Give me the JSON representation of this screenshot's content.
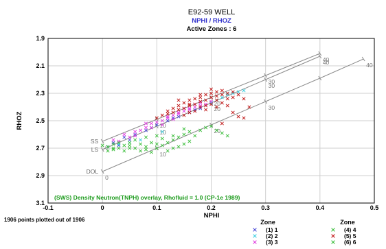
{
  "chart_data": {
    "type": "scatter",
    "title": "E92-59 WELL",
    "subtitle": "NPHI / RHOZ",
    "active_zones_label": "Active Zones : 6",
    "xlabel": "NPHI",
    "ylabel": "RHOZ",
    "xlim": [
      -0.1,
      0.5
    ],
    "ylim": [
      3.1,
      1.9
    ],
    "x_ticks": [
      -0.1,
      0,
      0.1,
      0.2,
      0.3,
      0.4,
      0.5
    ],
    "x_tick_labels": [
      "-0.1",
      "0",
      "0.1",
      "0.2",
      "0.3",
      "0.4",
      "0.5"
    ],
    "y_ticks": [
      1.9,
      2.1,
      2.3,
      2.5,
      2.7,
      2.9,
      3.1
    ],
    "y_tick_labels": [
      "1.9",
      "2.1",
      "2.3",
      "2.5",
      "2.7",
      "2.9",
      "3.1"
    ],
    "grid": true,
    "y_inverted": true,
    "overlay_caption": "(SWS) Density Neutron(TNPH) overlay, Rhofluid = 1.0 (CP-1e 1989)",
    "points_label": "1906 points plotted out of 1906",
    "legend_title_left": "Zone",
    "legend_title_right": "Zone",
    "legend_position": "bottom-right",
    "lithology_lines": [
      {
        "name": "SS",
        "color": "#8a8a8a",
        "points": [
          {
            "x": 0.0,
            "y": 2.65
          },
          {
            "x": 0.1,
            "y": 2.49
          },
          {
            "x": 0.2,
            "y": 2.33
          },
          {
            "x": 0.3,
            "y": 2.17
          },
          {
            "x": 0.4,
            "y": 2.01
          }
        ],
        "labels": [
          {
            "x": 0.0,
            "y": 2.65,
            "text": "0"
          },
          {
            "x": 0.1,
            "y": 2.49,
            "text": "10"
          },
          {
            "x": 0.2,
            "y": 2.33,
            "text": "20"
          },
          {
            "x": 0.3,
            "y": 2.17,
            "text": "30"
          },
          {
            "x": 0.4,
            "y": 2.01,
            "text": "40"
          }
        ]
      },
      {
        "name": "LS",
        "color": "#8a8a8a",
        "points": [
          {
            "x": 0.0,
            "y": 2.71
          },
          {
            "x": 0.1,
            "y": 2.54
          },
          {
            "x": 0.2,
            "y": 2.37
          },
          {
            "x": 0.3,
            "y": 2.2
          },
          {
            "x": 0.4,
            "y": 2.03
          }
        ],
        "labels": [
          {
            "x": 0.1,
            "y": 2.54,
            "text": "10"
          },
          {
            "x": 0.2,
            "y": 2.37,
            "text": "20"
          },
          {
            "x": 0.3,
            "y": 2.2,
            "text": "30"
          },
          {
            "x": 0.4,
            "y": 2.03,
            "text": "40"
          }
        ]
      },
      {
        "name": "DOL",
        "color": "#8a8a8a",
        "points": [
          {
            "x": 0.0,
            "y": 2.87
          },
          {
            "x": 0.1,
            "y": 2.7
          },
          {
            "x": 0.2,
            "y": 2.53
          },
          {
            "x": 0.3,
            "y": 2.36
          },
          {
            "x": 0.4,
            "y": 2.19
          },
          {
            "x": 0.48,
            "y": 2.05
          }
        ],
        "labels": [
          {
            "x": 0.0,
            "y": 2.87,
            "text": "0"
          },
          {
            "x": 0.1,
            "y": 2.7,
            "text": "10"
          },
          {
            "x": 0.2,
            "y": 2.53,
            "text": "20"
          },
          {
            "x": 0.3,
            "y": 2.36,
            "text": "30"
          },
          {
            "x": 0.48,
            "y": 2.05,
            "text": "40"
          }
        ]
      }
    ],
    "series": [
      {
        "name": "(1) 1",
        "marker": "x",
        "color": "#4b4bd8",
        "points": [
          [
            0.02,
            2.66
          ],
          [
            0.04,
            2.62
          ],
          [
            0.06,
            2.6
          ],
          [
            0.08,
            2.57
          ],
          [
            0.1,
            2.53
          ],
          [
            0.12,
            2.5
          ],
          [
            0.14,
            2.47
          ],
          [
            0.16,
            2.44
          ],
          [
            0.18,
            2.41
          ],
          [
            0.2,
            2.37
          ],
          [
            0.03,
            2.68
          ],
          [
            0.05,
            2.64
          ],
          [
            0.09,
            2.55
          ],
          [
            0.13,
            2.48
          ],
          [
            0.17,
            2.42
          ]
        ]
      },
      {
        "name": "(2) 2",
        "marker": "x",
        "color": "#3ecfe0",
        "points": [
          [
            0.01,
            2.69
          ],
          [
            0.03,
            2.67
          ],
          [
            0.05,
            2.66
          ],
          [
            0.07,
            2.64
          ],
          [
            0.11,
            2.58
          ],
          [
            0.2,
            2.37
          ],
          [
            0.22,
            2.33
          ],
          [
            0.24,
            2.3
          ],
          [
            0.25,
            2.29
          ],
          [
            0.26,
            2.28
          ],
          [
            0.23,
            2.31
          ],
          [
            0.21,
            2.35
          ]
        ]
      },
      {
        "name": "(3) 3",
        "marker": "x",
        "color": "#e040e0",
        "points": [
          [
            0.02,
            2.64
          ],
          [
            0.04,
            2.6
          ],
          [
            0.06,
            2.58
          ],
          [
            0.08,
            2.55
          ],
          [
            0.09,
            2.52
          ],
          [
            0.11,
            2.5
          ],
          [
            0.12,
            2.48
          ],
          [
            0.13,
            2.46
          ],
          [
            0.14,
            2.45
          ],
          [
            0.15,
            2.43
          ],
          [
            0.16,
            2.42
          ],
          [
            0.17,
            2.4
          ],
          [
            0.18,
            2.39
          ],
          [
            0.19,
            2.38
          ],
          [
            0.2,
            2.36
          ],
          [
            0.07,
            2.57
          ],
          [
            0.1,
            2.51
          ],
          [
            0.12,
            2.47
          ],
          [
            0.14,
            2.44
          ],
          [
            0.16,
            2.41
          ],
          [
            0.18,
            2.37
          ],
          [
            0.05,
            2.62
          ],
          [
            0.03,
            2.65
          ],
          [
            0.13,
            2.49
          ],
          [
            0.15,
            2.41
          ],
          [
            0.17,
            2.38
          ],
          [
            0.11,
            2.53
          ],
          [
            0.09,
            2.55
          ],
          [
            0.06,
            2.61
          ],
          [
            0.08,
            2.52
          ]
        ]
      },
      {
        "name": "(4) 4",
        "marker": "x",
        "color": "#3fbf3f",
        "points": [
          [
            0.0,
            2.68
          ],
          [
            0.01,
            2.69
          ],
          [
            0.02,
            2.67
          ],
          [
            0.03,
            2.7
          ],
          [
            0.04,
            2.68
          ],
          [
            0.05,
            2.66
          ],
          [
            0.06,
            2.7
          ],
          [
            0.07,
            2.72
          ],
          [
            0.08,
            2.69
          ],
          [
            0.09,
            2.73
          ],
          [
            0.1,
            2.7
          ],
          [
            0.11,
            2.68
          ],
          [
            0.12,
            2.66
          ],
          [
            0.13,
            2.64
          ],
          [
            0.14,
            2.62
          ],
          [
            0.15,
            2.6
          ],
          [
            0.16,
            2.58
          ],
          [
            0.17,
            2.61
          ],
          [
            0.18,
            2.57
          ],
          [
            0.19,
            2.55
          ],
          [
            0.2,
            2.54
          ],
          [
            0.21,
            2.57
          ],
          [
            0.22,
            2.59
          ],
          [
            0.23,
            2.61
          ],
          [
            0.08,
            2.62
          ],
          [
            0.06,
            2.64
          ],
          [
            0.1,
            2.61
          ],
          [
            0.12,
            2.72
          ],
          [
            0.14,
            2.69
          ],
          [
            0.16,
            2.65
          ],
          [
            0.04,
            2.72
          ],
          [
            0.02,
            2.71
          ],
          [
            0.09,
            2.66
          ],
          [
            0.11,
            2.63
          ],
          [
            0.13,
            2.7
          ],
          [
            0.15,
            2.67
          ],
          [
            0.05,
            2.7
          ],
          [
            0.07,
            2.67
          ],
          [
            0.03,
            2.66
          ],
          [
            0.01,
            2.72
          ]
        ]
      },
      {
        "name": "(5) 5",
        "marker": "x",
        "color": "#c01818",
        "points": [
          [
            0.1,
            2.48
          ],
          [
            0.12,
            2.45
          ],
          [
            0.13,
            2.44
          ],
          [
            0.14,
            2.42
          ],
          [
            0.15,
            2.41
          ],
          [
            0.16,
            2.39
          ],
          [
            0.17,
            2.38
          ],
          [
            0.18,
            2.36
          ],
          [
            0.19,
            2.35
          ],
          [
            0.2,
            2.33
          ],
          [
            0.21,
            2.32
          ],
          [
            0.22,
            2.31
          ],
          [
            0.23,
            2.3
          ],
          [
            0.24,
            2.29
          ],
          [
            0.25,
            2.31
          ],
          [
            0.15,
            2.37
          ],
          [
            0.16,
            2.35
          ],
          [
            0.17,
            2.34
          ],
          [
            0.18,
            2.33
          ],
          [
            0.19,
            2.31
          ],
          [
            0.2,
            2.3
          ],
          [
            0.21,
            2.35
          ],
          [
            0.22,
            2.37
          ],
          [
            0.23,
            2.34
          ],
          [
            0.14,
            2.39
          ],
          [
            0.13,
            2.41
          ],
          [
            0.12,
            2.43
          ],
          [
            0.11,
            2.46
          ],
          [
            0.18,
            2.4
          ],
          [
            0.2,
            2.38
          ],
          [
            0.22,
            2.28
          ],
          [
            0.24,
            2.33
          ],
          [
            0.19,
            2.42
          ],
          [
            0.21,
            2.4
          ],
          [
            0.17,
            2.43
          ],
          [
            0.16,
            2.44
          ],
          [
            0.15,
            2.46
          ],
          [
            0.26,
            2.34
          ],
          [
            0.27,
            2.4
          ],
          [
            0.25,
            2.47
          ],
          [
            0.22,
            2.52
          ],
          [
            0.24,
            2.44
          ],
          [
            0.26,
            2.48
          ],
          [
            0.23,
            2.39
          ],
          [
            0.14,
            2.35
          ],
          [
            0.18,
            2.31
          ],
          [
            0.2,
            2.27
          ],
          [
            0.19,
            2.39
          ],
          [
            0.21,
            2.29
          ],
          [
            0.16,
            2.38
          ]
        ]
      },
      {
        "name": "(6) 6",
        "marker": "x",
        "color": "#3fbf3f",
        "points": [
          [
            0.02,
            2.7
          ],
          [
            0.05,
            2.68
          ],
          [
            0.08,
            2.71
          ],
          [
            0.1,
            2.67
          ],
          [
            0.13,
            2.61
          ],
          [
            0.15,
            2.56
          ]
        ]
      }
    ]
  }
}
